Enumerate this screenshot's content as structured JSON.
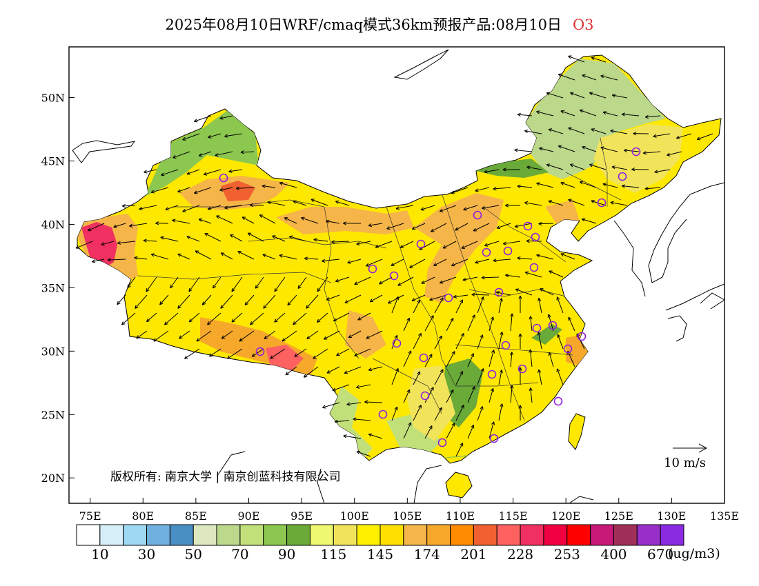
{
  "title": {
    "main": "2025年08月10日WRF/cmaq模式36km预报产品:08月10日",
    "species": "O3",
    "species_color": "#e03030"
  },
  "axes": {
    "lat_labels": [
      "50N",
      "45N",
      "40N",
      "35N",
      "30N",
      "25N",
      "20N"
    ],
    "lat_values": [
      50,
      45,
      40,
      35,
      30,
      25,
      20
    ],
    "lon_labels": [
      "75E",
      "80E",
      "85E",
      "90E",
      "95E",
      "100E",
      "105E",
      "110E",
      "115E",
      "120E",
      "125E",
      "130E",
      "135E"
    ],
    "lon_values": [
      75,
      80,
      85,
      90,
      95,
      100,
      105,
      110,
      115,
      120,
      125,
      130,
      135
    ],
    "lat_range": [
      18,
      54
    ],
    "lon_range": [
      73,
      135
    ]
  },
  "wind_reference": {
    "label": "10 m/s"
  },
  "copyright": "版权所有: 南京大学 | 南京创蓝科技有限公司",
  "colorbar": {
    "colors": [
      "#ffffff",
      "#d6eef8",
      "#9ed8f2",
      "#6fb0de",
      "#4a8fc4",
      "#dde8c0",
      "#bcd88a",
      "#c2e07a",
      "#8cc850",
      "#6aaa38",
      "#eef870",
      "#f2e45a",
      "#fff000",
      "#ffe000",
      "#f5b548",
      "#f5a82a",
      "#ff8c00",
      "#f06030",
      "#ff6060",
      "#f03060",
      "#f00040",
      "#ff0000",
      "#c81878",
      "#a03058",
      "#9830c8",
      "#8a2be2"
    ],
    "tick_labels": [
      "10",
      "30",
      "50",
      "70",
      "90",
      "115",
      "145",
      "174",
      "201",
      "228",
      "253",
      "400",
      "670"
    ],
    "unit": "(ug/m3)"
  },
  "stations_note": "",
  "colors": {
    "land_base": "#ffe800",
    "orange_high": "#f5a030",
    "green_low": "#8cc850",
    "station_marker": "#9020e0"
  }
}
